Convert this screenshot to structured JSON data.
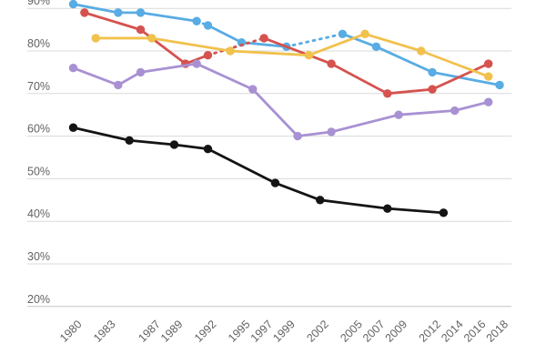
{
  "chart_data": {
    "type": "line",
    "x_tick_labels": [
      "1980",
      "1983",
      "1987",
      "1989",
      "1992",
      "1995",
      "1997",
      "1999",
      "2002",
      "2005",
      "2007",
      "2009",
      "2012",
      "2014",
      "2016",
      "2018"
    ],
    "y_tick_labels": [
      "20%",
      "30%",
      "40%",
      "50%",
      "60%",
      "70%",
      "80%",
      "90%"
    ],
    "xlim": [
      1976,
      2019
    ],
    "ylim": [
      20,
      91.5
    ],
    "grid": "horizontal",
    "legend": "none",
    "series": [
      {
        "id": "blue",
        "color": "#58ACE3",
        "points": [
          [
            1980,
            91
          ],
          [
            1984,
            89
          ],
          [
            1986,
            89
          ],
          [
            1991,
            87
          ],
          [
            1992,
            86
          ],
          [
            1995,
            82
          ],
          [
            1999,
            81
          ],
          [
            2004,
            84
          ],
          [
            2007,
            81
          ],
          [
            2012,
            75
          ],
          [
            2018,
            72
          ]
        ],
        "dashed_gaps": [
          [
            3,
            4
          ],
          [
            6,
            7
          ]
        ]
      },
      {
        "id": "red",
        "color": "#D5524F",
        "points": [
          [
            1981,
            89
          ],
          [
            1986,
            85
          ],
          [
            1990,
            77
          ],
          [
            1992,
            79
          ],
          [
            1997,
            83
          ],
          [
            2003,
            77
          ],
          [
            2008,
            70
          ],
          [
            2012,
            71
          ],
          [
            2017,
            77
          ]
        ],
        "dashed_gaps": [
          [
            3,
            4
          ]
        ]
      },
      {
        "id": "yellow",
        "color": "#F1C14D",
        "points": [
          [
            1982,
            83
          ],
          [
            1987,
            83
          ],
          [
            1994,
            80
          ],
          [
            2001,
            79
          ],
          [
            2006,
            84
          ],
          [
            2011,
            80
          ],
          [
            2017,
            74
          ]
        ],
        "dashed_gaps": []
      },
      {
        "id": "purple",
        "color": "#A891D3",
        "points": [
          [
            1980,
            76
          ],
          [
            1984,
            72
          ],
          [
            1986,
            75
          ],
          [
            1991,
            77
          ],
          [
            1996,
            71
          ],
          [
            2000,
            60
          ],
          [
            2003,
            61
          ],
          [
            2009,
            65
          ],
          [
            2014,
            66
          ],
          [
            2017,
            68
          ]
        ],
        "dashed_gaps": []
      },
      {
        "id": "black",
        "color": "#141414",
        "points": [
          [
            1980,
            62
          ],
          [
            1985,
            59
          ],
          [
            1989,
            58
          ],
          [
            1992,
            57
          ],
          [
            1998,
            49
          ],
          [
            2002,
            45
          ],
          [
            2008,
            43
          ],
          [
            2013,
            42
          ]
        ],
        "dashed_gaps": []
      }
    ]
  },
  "colors": {
    "gridline": "#DADADA",
    "baseline": "#C4C4C4",
    "tick_label": "#636363",
    "background": "#FFFFFF"
  }
}
